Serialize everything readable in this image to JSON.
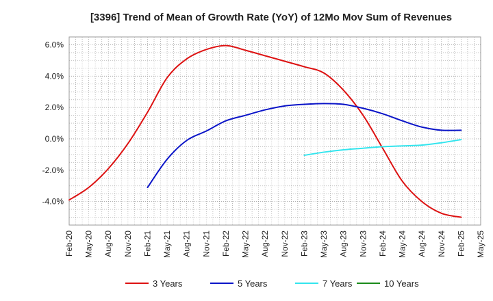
{
  "chart_data": {
    "type": "line",
    "title": "[3396]  Trend of Mean of Growth Rate (YoY) of 12Mo Mov Sum of Revenues",
    "xlabel": "",
    "ylabel": "",
    "ylim": [
      -5.5,
      6.5
    ],
    "yticks": [
      -4.0,
      -2.0,
      0.0,
      2.0,
      4.0,
      6.0
    ],
    "ytick_labels": [
      "-4.0%",
      "-2.0%",
      "0.0%",
      "2.0%",
      "4.0%",
      "6.0%"
    ],
    "grid": true,
    "legend_position": "bottom",
    "x_start_month_index": 0,
    "x_end_month_index": 63,
    "x_tick_labels": [
      "Feb-20",
      "May-20",
      "Aug-20",
      "Nov-20",
      "Feb-21",
      "May-21",
      "Aug-21",
      "Nov-21",
      "Feb-22",
      "May-22",
      "Aug-22",
      "Nov-22",
      "Feb-23",
      "May-23",
      "Aug-23",
      "Nov-23",
      "Feb-24",
      "May-24",
      "Aug-24",
      "Nov-24",
      "Feb-25",
      "May-25"
    ],
    "series": [
      {
        "name": "3 Years",
        "color": "#dd1111",
        "x": [
          0,
          3,
          6,
          9,
          12,
          15,
          18,
          21,
          24,
          27,
          30,
          33,
          36,
          39,
          42,
          45,
          48,
          51,
          54,
          57,
          60
        ],
        "values": [
          -3.9,
          -3.1,
          -1.9,
          -0.3,
          1.7,
          3.9,
          5.1,
          5.7,
          5.95,
          5.65,
          5.3,
          4.95,
          4.6,
          4.2,
          3.1,
          1.5,
          -0.6,
          -2.7,
          -4.0,
          -4.75,
          -5.0
        ]
      },
      {
        "name": "5 Years",
        "color": "#0a14c8",
        "x": [
          12,
          15,
          18,
          21,
          24,
          27,
          30,
          33,
          36,
          39,
          42,
          45,
          48,
          51,
          54,
          57,
          60
        ],
        "values": [
          -3.1,
          -1.3,
          -0.1,
          0.5,
          1.15,
          1.5,
          1.85,
          2.1,
          2.2,
          2.25,
          2.2,
          1.95,
          1.6,
          1.15,
          0.75,
          0.55,
          0.55
        ]
      },
      {
        "name": "7 Years",
        "color": "#33e5ee",
        "x": [
          36,
          39,
          42,
          45,
          48,
          51,
          54,
          57,
          60
        ],
        "values": [
          -1.05,
          -0.85,
          -0.7,
          -0.6,
          -0.5,
          -0.45,
          -0.4,
          -0.25,
          -0.05
        ]
      },
      {
        "name": "10 Years",
        "color": "#1a8a1a",
        "x": [],
        "values": []
      }
    ]
  }
}
